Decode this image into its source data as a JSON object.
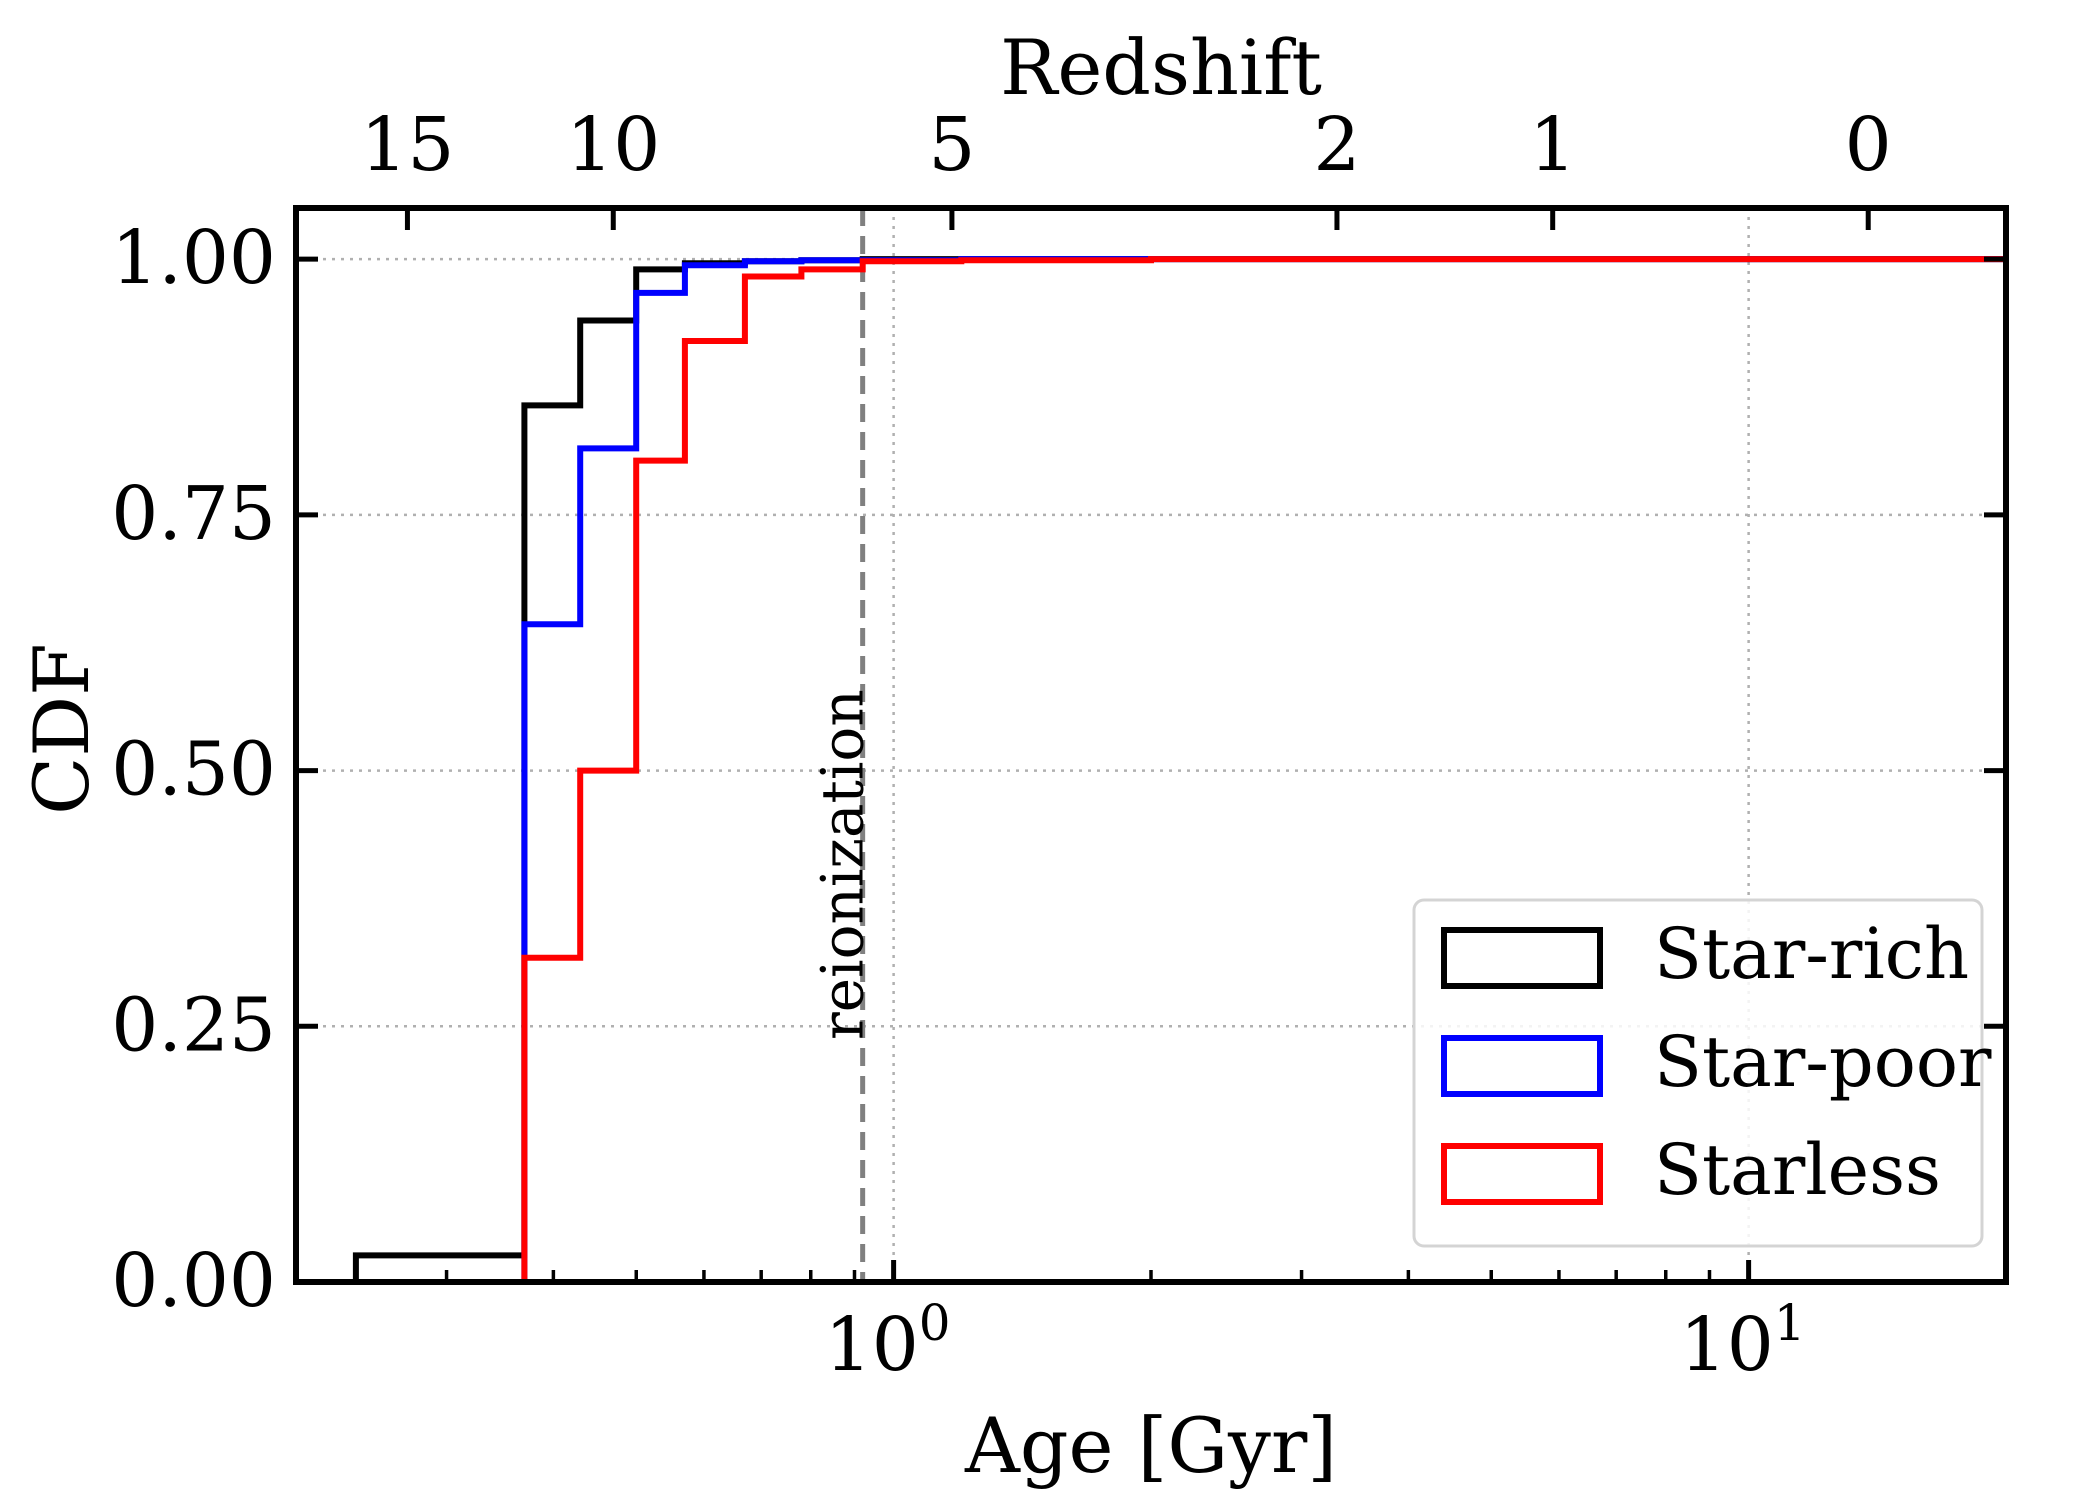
{
  "chart_data": {
    "type": "line",
    "subtype": "step cumulative distribution",
    "xscale": "log",
    "xlabel": "Age [Gyr]",
    "ylabel": "CDF",
    "top_axis_label": "Redshift",
    "xlim": [
      0.2,
      20
    ],
    "ylim": [
      0,
      1.05
    ],
    "grid": true,
    "legend_position": "lower-right",
    "x_ticks": [
      {
        "value": 1,
        "base": "10",
        "exp": "0"
      },
      {
        "value": 10,
        "base": "10",
        "exp": "1"
      }
    ],
    "y_ticks": [
      {
        "value": 0,
        "label": "0.00"
      },
      {
        "value": 0.25,
        "label": "0.25"
      },
      {
        "value": 0.5,
        "label": "0.50"
      },
      {
        "value": 0.75,
        "label": "0.75"
      },
      {
        "value": 1,
        "label": "1.00"
      }
    ],
    "top_ticks": [
      {
        "age": 0.27,
        "label": "15"
      },
      {
        "age": 0.47,
        "label": "10"
      },
      {
        "age": 1.17,
        "label": "5"
      },
      {
        "age": 3.3,
        "label": "2"
      },
      {
        "age": 5.9,
        "label": "1"
      },
      {
        "age": 13.8,
        "label": "0"
      }
    ],
    "annotations": [
      {
        "type": "vline",
        "x": 0.92,
        "label": "reionization",
        "color": "#808080",
        "style": "dashed"
      }
    ],
    "series": [
      {
        "name": "Star-rich",
        "color": "#000000",
        "x": [
          0.235,
          0.37,
          0.43,
          0.5,
          0.57,
          0.67,
          0.78,
          0.92,
          1.2,
          2.0,
          4.5,
          20
        ],
        "y": [
          0.026,
          0.857,
          0.94,
          0.99,
          0.996,
          0.998,
          0.999,
          1.0,
          1.0,
          1.0,
          1.0,
          1.0
        ]
      },
      {
        "name": "Star-poor",
        "color": "#0000ff",
        "x": [
          0.235,
          0.37,
          0.43,
          0.5,
          0.57,
          0.67,
          0.78,
          0.92,
          1.2,
          2.0,
          4.5,
          20
        ],
        "y": [
          0.0,
          0.643,
          0.815,
          0.967,
          0.994,
          0.998,
          0.999,
          0.999,
          1.0,
          1.0,
          1.0,
          1.0
        ]
      },
      {
        "name": "Starless",
        "color": "#ff0000",
        "x": [
          0.37,
          0.43,
          0.5,
          0.57,
          0.67,
          0.78,
          0.92,
          1.2,
          2.0,
          4.5,
          11,
          20
        ],
        "y": [
          0.317,
          0.5,
          0.803,
          0.92,
          0.983,
          0.99,
          0.998,
          0.999,
          1.0,
          1.0,
          1.0,
          1.0
        ]
      }
    ]
  }
}
